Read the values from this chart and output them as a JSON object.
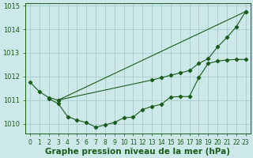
{
  "bg_color": "#cce8e8",
  "grid_color": "#aacccc",
  "line_color": "#1a5c1a",
  "xlabel": "Graphe pression niveau de la mer (hPa)",
  "xlabel_fontsize": 7.5,
  "tick_fontsize": 6,
  "ylim": [
    1009.6,
    1015.1
  ],
  "xlim": [
    -0.5,
    23.5
  ],
  "yticks": [
    1010,
    1011,
    1012,
    1013,
    1014,
    1015
  ],
  "xticks": [
    0,
    1,
    2,
    3,
    4,
    5,
    6,
    7,
    8,
    9,
    10,
    11,
    12,
    13,
    14,
    15,
    16,
    17,
    18,
    19,
    20,
    21,
    22,
    23
  ],
  "line1_x": [
    0,
    1,
    2,
    3,
    23
  ],
  "line1_y": [
    1011.75,
    1011.35,
    1011.1,
    1011.0,
    1014.75
  ],
  "line2_x": [
    3,
    13,
    14,
    15,
    16,
    17,
    18,
    19,
    20,
    21,
    22,
    23
  ],
  "line2_y": [
    1011.0,
    1011.85,
    1011.95,
    1012.05,
    1012.15,
    1012.25,
    1012.55,
    1012.75,
    1013.25,
    1013.65,
    1014.1,
    1014.75
  ],
  "line3_x": [
    2,
    3,
    4,
    5,
    6,
    7,
    8,
    9,
    10,
    11,
    12,
    13,
    14,
    15,
    16,
    17,
    18,
    19,
    20,
    21,
    22,
    23
  ],
  "line3_y": [
    1011.05,
    1010.85,
    1010.3,
    1010.15,
    1010.05,
    1009.85,
    1009.95,
    1010.05,
    1010.25,
    1010.28,
    1010.6,
    1010.73,
    1010.82,
    1011.13,
    1011.15,
    1011.15,
    1011.95,
    1012.55,
    1012.65,
    1012.7,
    1012.72,
    1012.72
  ]
}
